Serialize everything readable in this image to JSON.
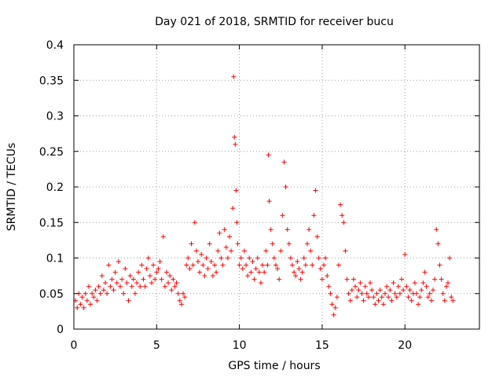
{
  "chart_data": {
    "type": "scatter",
    "title": "Day 021 of 2018, SRMTID for receiver bucu",
    "xlabel": "GPS time / hours",
    "ylabel": "SRMTID / TECUs",
    "xlim": [
      0,
      24.5
    ],
    "ylim": [
      0,
      0.4
    ],
    "xticks": [
      0,
      5,
      10,
      15,
      20
    ],
    "xtick_labels": [
      "0",
      "5",
      "10",
      "15",
      "20"
    ],
    "yticks": [
      0,
      0.05,
      0.1,
      0.15,
      0.2,
      0.25,
      0.3,
      0.35,
      0.4
    ],
    "ytick_labels": [
      "0",
      "0.05",
      "0.1",
      "0.15",
      "0.2",
      "0.25",
      "0.3",
      "0.35",
      "0.4"
    ],
    "grid": true,
    "marker": "+",
    "series": [
      {
        "name": "SRMTID",
        "color": "#ff0000",
        "points": [
          [
            0.1,
            0.04
          ],
          [
            0.2,
            0.03
          ],
          [
            0.3,
            0.05
          ],
          [
            0.4,
            0.035
          ],
          [
            0.5,
            0.045
          ],
          [
            0.6,
            0.03
          ],
          [
            0.7,
            0.05
          ],
          [
            0.8,
            0.04
          ],
          [
            0.9,
            0.06
          ],
          [
            1.0,
            0.035
          ],
          [
            1.1,
            0.05
          ],
          [
            1.2,
            0.045
          ],
          [
            1.3,
            0.055
          ],
          [
            1.4,
            0.04
          ],
          [
            1.5,
            0.06
          ],
          [
            1.6,
            0.05
          ],
          [
            1.7,
            0.075
          ],
          [
            1.8,
            0.055
          ],
          [
            1.9,
            0.065
          ],
          [
            2.0,
            0.05
          ],
          [
            2.1,
            0.09
          ],
          [
            2.2,
            0.06
          ],
          [
            2.3,
            0.07
          ],
          [
            2.4,
            0.055
          ],
          [
            2.5,
            0.08
          ],
          [
            2.6,
            0.065
          ],
          [
            2.7,
            0.095
          ],
          [
            2.8,
            0.06
          ],
          [
            2.9,
            0.07
          ],
          [
            3.0,
            0.05
          ],
          [
            3.1,
            0.085
          ],
          [
            3.2,
            0.065
          ],
          [
            3.3,
            0.04
          ],
          [
            3.4,
            0.075
          ],
          [
            3.5,
            0.06
          ],
          [
            3.6,
            0.07
          ],
          [
            3.7,
            0.05
          ],
          [
            3.8,
            0.065
          ],
          [
            3.9,
            0.08
          ],
          [
            4.0,
            0.06
          ],
          [
            4.1,
            0.09
          ],
          [
            4.2,
            0.07
          ],
          [
            4.3,
            0.06
          ],
          [
            4.4,
            0.085
          ],
          [
            4.5,
            0.1
          ],
          [
            4.6,
            0.075
          ],
          [
            4.7,
            0.065
          ],
          [
            4.8,
            0.09
          ],
          [
            4.9,
            0.07
          ],
          [
            5.0,
            0.08
          ],
          [
            5.1,
            0.085
          ],
          [
            5.2,
            0.095
          ],
          [
            5.3,
            0.07
          ],
          [
            5.4,
            0.13
          ],
          [
            5.5,
            0.06
          ],
          [
            5.6,
            0.08
          ],
          [
            5.7,
            0.065
          ],
          [
            5.8,
            0.075
          ],
          [
            5.9,
            0.055
          ],
          [
            6.0,
            0.07
          ],
          [
            6.1,
            0.06
          ],
          [
            6.2,
            0.065
          ],
          [
            6.3,
            0.05
          ],
          [
            6.4,
            0.04
          ],
          [
            6.5,
            0.035
          ],
          [
            6.6,
            0.05
          ],
          [
            6.7,
            0.045
          ],
          [
            6.8,
            0.09
          ],
          [
            6.9,
            0.1
          ],
          [
            7.0,
            0.085
          ],
          [
            7.1,
            0.12
          ],
          [
            7.2,
            0.09
          ],
          [
            7.3,
            0.15
          ],
          [
            7.4,
            0.11
          ],
          [
            7.5,
            0.095
          ],
          [
            7.6,
            0.08
          ],
          [
            7.7,
            0.105
          ],
          [
            7.8,
            0.09
          ],
          [
            7.9,
            0.075
          ],
          [
            8.0,
            0.1
          ],
          [
            8.1,
            0.085
          ],
          [
            8.2,
            0.12
          ],
          [
            8.3,
            0.095
          ],
          [
            8.4,
            0.075
          ],
          [
            8.5,
            0.09
          ],
          [
            8.6,
            0.08
          ],
          [
            8.7,
            0.11
          ],
          [
            8.8,
            0.135
          ],
          [
            8.9,
            0.1
          ],
          [
            9.0,
            0.09
          ],
          [
            9.1,
            0.14
          ],
          [
            9.2,
            0.115
          ],
          [
            9.3,
            0.1
          ],
          [
            9.4,
            0.13
          ],
          [
            9.5,
            0.11
          ],
          [
            9.6,
            0.17
          ],
          [
            9.65,
            0.355
          ],
          [
            9.7,
            0.27
          ],
          [
            9.75,
            0.26
          ],
          [
            9.8,
            0.195
          ],
          [
            9.85,
            0.15
          ],
          [
            9.9,
            0.12
          ],
          [
            10.0,
            0.09
          ],
          [
            10.1,
            0.1
          ],
          [
            10.2,
            0.085
          ],
          [
            10.3,
            0.11
          ],
          [
            10.4,
            0.09
          ],
          [
            10.5,
            0.075
          ],
          [
            10.6,
            0.1
          ],
          [
            10.7,
            0.08
          ],
          [
            10.8,
            0.095
          ],
          [
            10.9,
            0.07
          ],
          [
            11.0,
            0.085
          ],
          [
            11.1,
            0.1
          ],
          [
            11.2,
            0.08
          ],
          [
            11.3,
            0.065
          ],
          [
            11.4,
            0.09
          ],
          [
            11.5,
            0.08
          ],
          [
            11.6,
            0.11
          ],
          [
            11.7,
            0.09
          ],
          [
            11.75,
            0.245
          ],
          [
            11.8,
            0.18
          ],
          [
            11.9,
            0.14
          ],
          [
            12.0,
            0.12
          ],
          [
            12.1,
            0.1
          ],
          [
            12.2,
            0.09
          ],
          [
            12.3,
            0.085
          ],
          [
            12.4,
            0.07
          ],
          [
            12.5,
            0.11
          ],
          [
            12.6,
            0.16
          ],
          [
            12.7,
            0.235
          ],
          [
            12.8,
            0.2
          ],
          [
            12.9,
            0.14
          ],
          [
            13.0,
            0.12
          ],
          [
            13.1,
            0.1
          ],
          [
            13.2,
            0.09
          ],
          [
            13.3,
            0.08
          ],
          [
            13.4,
            0.075
          ],
          [
            13.5,
            0.095
          ],
          [
            13.6,
            0.085
          ],
          [
            13.7,
            0.07
          ],
          [
            13.8,
            0.08
          ],
          [
            13.9,
            0.1
          ],
          [
            14.0,
            0.09
          ],
          [
            14.1,
            0.12
          ],
          [
            14.2,
            0.14
          ],
          [
            14.3,
            0.11
          ],
          [
            14.4,
            0.09
          ],
          [
            14.5,
            0.16
          ],
          [
            14.6,
            0.195
          ],
          [
            14.7,
            0.13
          ],
          [
            14.8,
            0.1
          ],
          [
            14.9,
            0.085
          ],
          [
            15.0,
            0.07
          ],
          [
            15.1,
            0.09
          ],
          [
            15.2,
            0.1
          ],
          [
            15.3,
            0.075
          ],
          [
            15.4,
            0.06
          ],
          [
            15.5,
            0.05
          ],
          [
            15.6,
            0.035
          ],
          [
            15.7,
            0.02
          ],
          [
            15.8,
            0.03
          ],
          [
            15.9,
            0.045
          ],
          [
            16.0,
            0.09
          ],
          [
            16.1,
            0.175
          ],
          [
            16.2,
            0.16
          ],
          [
            16.3,
            0.15
          ],
          [
            16.4,
            0.11
          ],
          [
            16.5,
            0.07
          ],
          [
            16.6,
            0.05
          ],
          [
            16.7,
            0.04
          ],
          [
            16.8,
            0.055
          ],
          [
            16.9,
            0.07
          ],
          [
            17.0,
            0.06
          ],
          [
            17.1,
            0.045
          ],
          [
            17.2,
            0.055
          ],
          [
            17.3,
            0.065
          ],
          [
            17.4,
            0.05
          ],
          [
            17.5,
            0.04
          ],
          [
            17.6,
            0.06
          ],
          [
            17.7,
            0.05
          ],
          [
            17.8,
            0.045
          ],
          [
            17.9,
            0.065
          ],
          [
            18.0,
            0.055
          ],
          [
            18.1,
            0.045
          ],
          [
            18.2,
            0.035
          ],
          [
            18.3,
            0.05
          ],
          [
            18.4,
            0.04
          ],
          [
            18.5,
            0.055
          ],
          [
            18.6,
            0.045
          ],
          [
            18.7,
            0.035
          ],
          [
            18.8,
            0.05
          ],
          [
            18.9,
            0.06
          ],
          [
            19.0,
            0.045
          ],
          [
            19.1,
            0.055
          ],
          [
            19.2,
            0.04
          ],
          [
            19.3,
            0.065
          ],
          [
            19.4,
            0.05
          ],
          [
            19.5,
            0.045
          ],
          [
            19.6,
            0.06
          ],
          [
            19.7,
            0.05
          ],
          [
            19.8,
            0.07
          ],
          [
            19.9,
            0.055
          ],
          [
            20.0,
            0.105
          ],
          [
            20.1,
            0.06
          ],
          [
            20.2,
            0.045
          ],
          [
            20.3,
            0.055
          ],
          [
            20.4,
            0.04
          ],
          [
            20.5,
            0.05
          ],
          [
            20.6,
            0.065
          ],
          [
            20.7,
            0.05
          ],
          [
            20.8,
            0.035
          ],
          [
            20.9,
            0.045
          ],
          [
            21.0,
            0.055
          ],
          [
            21.1,
            0.065
          ],
          [
            21.2,
            0.08
          ],
          [
            21.3,
            0.06
          ],
          [
            21.4,
            0.045
          ],
          [
            21.5,
            0.05
          ],
          [
            21.6,
            0.04
          ],
          [
            21.7,
            0.055
          ],
          [
            21.8,
            0.07
          ],
          [
            21.9,
            0.14
          ],
          [
            22.0,
            0.12
          ],
          [
            22.1,
            0.09
          ],
          [
            22.2,
            0.07
          ],
          [
            22.3,
            0.05
          ],
          [
            22.4,
            0.04
          ],
          [
            22.5,
            0.06
          ],
          [
            22.6,
            0.065
          ],
          [
            22.7,
            0.1
          ],
          [
            22.8,
            0.045
          ],
          [
            22.9,
            0.04
          ]
        ]
      }
    ]
  }
}
